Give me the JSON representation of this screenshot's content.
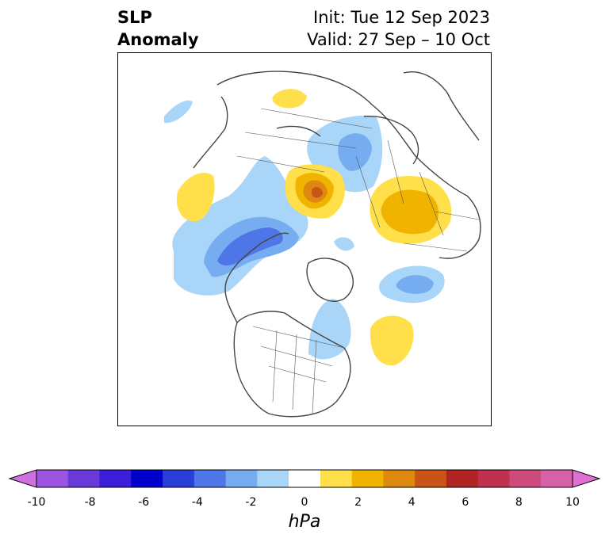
{
  "title": {
    "left_line1": "SLP",
    "left_line2": "Anomaly",
    "right_line1": "Init: Tue 12 Sep 2023",
    "right_line2": "Valid: 27 Sep – 10 Oct"
  },
  "colorbar": {
    "unit": "hPa",
    "ticks": [
      "-10",
      "-8",
      "-6",
      "-4",
      "-2",
      "0",
      "2",
      "4",
      "6",
      "8",
      "10"
    ],
    "colors": [
      "#d070e0",
      "#9c55e0",
      "#6a3ad8",
      "#3a1ed8",
      "#0000cc",
      "#2a3ed8",
      "#4f76e6",
      "#76adf0",
      "#a9d6f8",
      "#ffffff",
      "#ffe04a",
      "#f0b400",
      "#de8810",
      "#c85418",
      "#b02424",
      "#c03050",
      "#cc4a7c",
      "#d862aa",
      "#e070d0"
    ]
  },
  "map_features": {
    "anomaly_icon": "pressure-anomaly-contours",
    "land_icon": "coastline-outline"
  }
}
